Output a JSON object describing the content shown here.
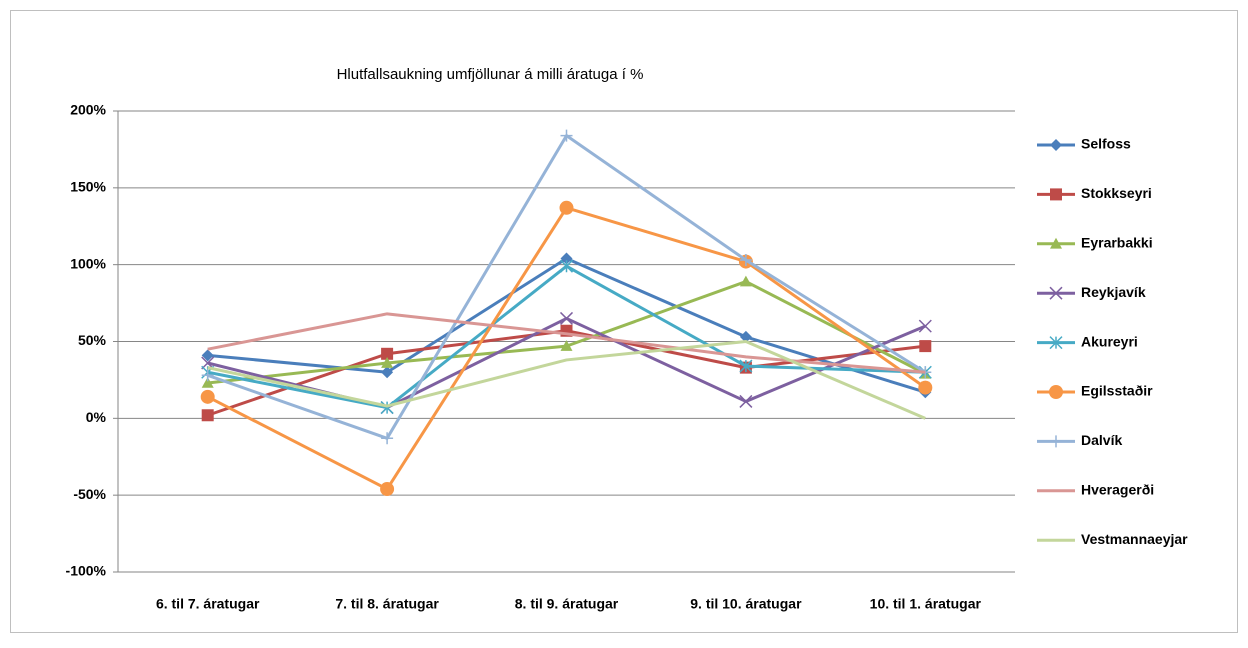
{
  "chart_data": {
    "type": "line",
    "title": "Hlutfallsaukning umfjöllunar á milli áratuga í %",
    "categories": [
      "6. til 7. áratugar",
      "7. til 8. áratugar",
      "8. til 9. áratugar",
      "9. til 10. áratugar",
      "10. til 1. áratugar"
    ],
    "ylim": [
      -100,
      200
    ],
    "yticks": [
      {
        "value": -100,
        "label": "-100%"
      },
      {
        "value": -50,
        "label": "-50%"
      },
      {
        "value": 0,
        "label": "0%"
      },
      {
        "value": 50,
        "label": "50%"
      },
      {
        "value": 100,
        "label": "100%"
      },
      {
        "value": 150,
        "label": "150%"
      },
      {
        "value": 200,
        "label": "200%"
      }
    ],
    "grid": true,
    "legend": "right",
    "series": [
      {
        "name": "Selfoss",
        "color": "#4a7ebb",
        "marker": "diamond",
        "values": [
          41,
          30,
          104,
          53,
          17
        ]
      },
      {
        "name": "Stokkseyri",
        "color": "#be4b48",
        "marker": "square",
        "values": [
          2,
          42,
          57,
          33,
          47
        ]
      },
      {
        "name": "Eyrarbakki",
        "color": "#98b954",
        "marker": "triangle",
        "values": [
          23,
          36,
          47,
          89,
          29
        ]
      },
      {
        "name": "Reykjavík",
        "color": "#7d60a0",
        "marker": "x",
        "values": [
          36,
          7,
          65,
          11,
          60
        ]
      },
      {
        "name": "Akureyri",
        "color": "#46aac5",
        "marker": "star",
        "values": [
          30,
          7,
          99,
          34,
          30
        ]
      },
      {
        "name": "Egilsstaðir",
        "color": "#f79646",
        "marker": "circle",
        "values": [
          14,
          -46,
          137,
          102,
          20
        ]
      },
      {
        "name": "Dalvík",
        "color": "#95b3d7",
        "marker": "plus",
        "values": [
          28,
          -13,
          184,
          103,
          30
        ]
      },
      {
        "name": "Hveragerði",
        "color": "#d99694",
        "marker": "none",
        "values": [
          45,
          68,
          55,
          40,
          30
        ]
      },
      {
        "name": "Vestmannaeyjar",
        "color": "#c3d69b",
        "marker": "none",
        "values": [
          33,
          8,
          38,
          50,
          0
        ]
      }
    ]
  }
}
